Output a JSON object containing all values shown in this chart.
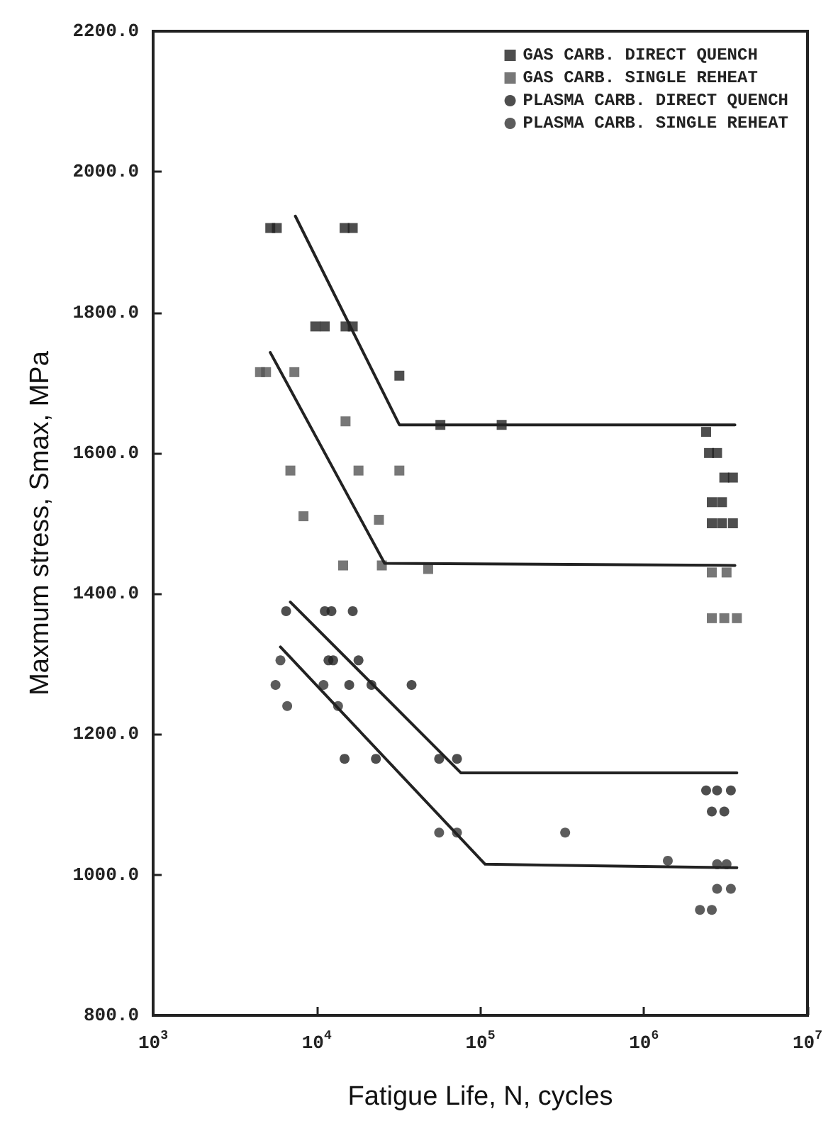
{
  "chart_data": {
    "type": "scatter",
    "xlabel": "Fatigue Life, N, cycles",
    "ylabel": "Maxmum stress, Smax, MPa",
    "log": "x",
    "grid": false,
    "legend": "top right",
    "xlim": [
      1000,
      10000000
    ],
    "xticks": [
      {
        "value": 1000,
        "label": "10$^{3}$"
      },
      {
        "value": 10000,
        "label": "10$^{4}$"
      },
      {
        "value": 100000,
        "label": "10$^{5}$"
      },
      {
        "value": 1000000,
        "label": "10$^{6}$"
      },
      {
        "value": 10000000,
        "label": "10$^{7}$"
      }
    ],
    "ylim": [
      800,
      2200
    ],
    "yticks": [
      {
        "value": 800,
        "label": "800.0"
      },
      {
        "value": 1000,
        "label": "1000.0"
      },
      {
        "value": 1200,
        "label": "1200.0"
      },
      {
        "value": 1400,
        "label": "1400.0"
      },
      {
        "value": 1600,
        "label": "1600.0"
      },
      {
        "value": 1800,
        "label": "1800.0"
      },
      {
        "value": 2000,
        "label": "2000.0"
      },
      {
        "value": 2200,
        "label": "2200.0"
      }
    ],
    "series": [
      {
        "name": "GAS CARB. DIRECT QUENCH",
        "color": "#222222",
        "marker": "square",
        "x": [
          5200,
          5700,
          14800,
          16600,
          9800,
          11200,
          15000,
          16600,
          32000,
          57000,
          135000,
          2400000,
          2500000,
          2800000,
          3100000,
          3500000,
          2600000,
          3000000,
          2600000,
          3000000,
          3500000
        ],
        "values": [
          1920,
          1920,
          1920,
          1920,
          1780,
          1780,
          1780,
          1780,
          1710,
          1640,
          1640,
          1630,
          1600,
          1600,
          1565,
          1565,
          1530,
          1530,
          1500,
          1500,
          1500
        ]
      },
      {
        "name": "GAS CARB. SINGLE REHEAT",
        "color": "#555555",
        "marker": "square",
        "x": [
          4500,
          4900,
          7300,
          15000,
          6900,
          18000,
          32000,
          8300,
          24000,
          14500,
          25000,
          48000,
          2600000,
          3200000,
          2600000,
          3100000,
          3700000
        ],
        "values": [
          1715,
          1715,
          1715,
          1645,
          1575,
          1575,
          1575,
          1510,
          1505,
          1440,
          1440,
          1435,
          1430,
          1430,
          1365,
          1365,
          1365
        ]
      },
      {
        "name": "PLASMA CARB. DIRECT QUENCH",
        "color": "#222222",
        "marker": "circle",
        "x": [
          6500,
          11200,
          12300,
          16600,
          11800,
          12600,
          18000,
          15800,
          21600,
          38000,
          14800,
          23000,
          56000,
          72000,
          2400000,
          2800000,
          3400000,
          2600000,
          3100000
        ],
        "values": [
          1375,
          1375,
          1375,
          1375,
          1305,
          1305,
          1305,
          1270,
          1270,
          1270,
          1165,
          1165,
          1165,
          1165,
          1120,
          1120,
          1120,
          1090,
          1090
        ]
      },
      {
        "name": "PLASMA CARB. SINGLE REHEAT",
        "color": "#333333",
        "marker": "circle",
        "x": [
          6000,
          5600,
          11000,
          6600,
          13500,
          56000,
          72000,
          330000,
          1400000,
          2800000,
          3200000,
          2800000,
          3400000,
          2200000,
          2600000
        ],
        "values": [
          1305,
          1270,
          1270,
          1240,
          1240,
          1060,
          1060,
          1060,
          1020,
          1015,
          1015,
          980,
          980,
          950,
          950
        ]
      },
      {
        "type": "line",
        "color": "#222222",
        "x": [
          7400,
          32000,
          3600000
        ],
        "values": [
          1937,
          1640,
          1640
        ]
      },
      {
        "type": "line",
        "color": "#222222",
        "x": [
          5200,
          26000,
          3600000
        ],
        "values": [
          1743,
          1443,
          1440
        ]
      },
      {
        "type": "line",
        "color": "#222222",
        "x": [
          6900,
          76000,
          3700000
        ],
        "values": [
          1388,
          1145,
          1145
        ]
      },
      {
        "type": "line",
        "color": "#222222",
        "x": [
          6000,
          107000,
          3700000
        ],
        "values": [
          1324,
          1015,
          1010
        ]
      }
    ]
  }
}
